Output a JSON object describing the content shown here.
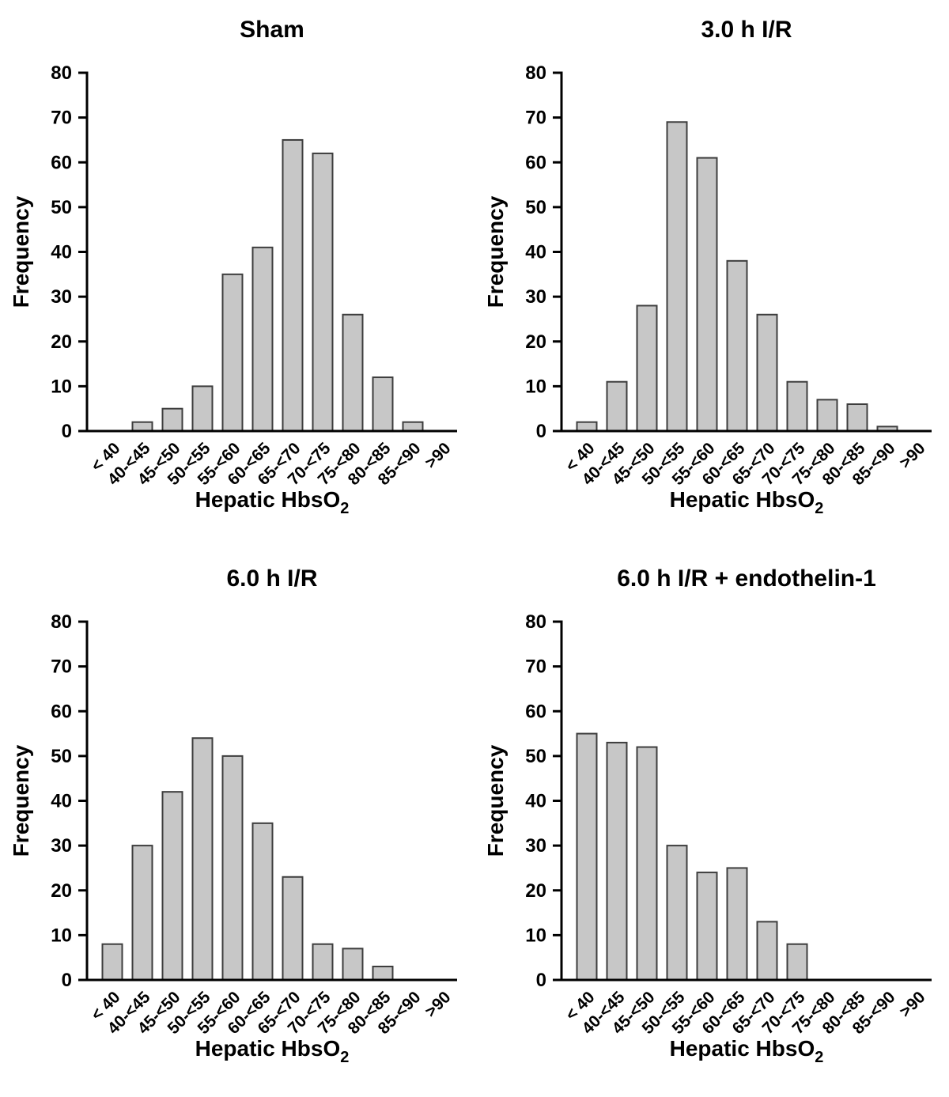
{
  "figure": {
    "description": "Four frequency histograms of hepatic HbsO2 saturation bins",
    "ylabel": "Frequency",
    "xlabel": "Hepatic HbsO",
    "xlabel_subscript": "2"
  },
  "colors": {
    "bar_fill": "#c7c7c7",
    "bar_stroke": "#3d3d3d",
    "axis": "#000000",
    "background": "#ffffff"
  },
  "chart_data": [
    {
      "type": "bar",
      "title": "Sham",
      "categories": [
        "< 40",
        "40-<45",
        "45-<50",
        "50-<55",
        "55-<60",
        "60-<65",
        "65-<70",
        "70-<75",
        "75-<80",
        "80-<85",
        "85-<90",
        ">90"
      ],
      "values": [
        0,
        2,
        5,
        10,
        35,
        41,
        65,
        62,
        26,
        12,
        2,
        0
      ],
      "xlabel": "Hepatic HbsO",
      "xlabel_sub": "2",
      "ylabel": "Frequency",
      "ylim": [
        0,
        80
      ],
      "yticks": [
        0,
        10,
        20,
        30,
        40,
        50,
        60,
        70,
        80
      ],
      "grid": false,
      "legend": "none"
    },
    {
      "type": "bar",
      "title": "3.0 h I/R",
      "categories": [
        "< 40",
        "40-<45",
        "45-<50",
        "50-<55",
        "55-<60",
        "60-<65",
        "65-<70",
        "70-<75",
        "75-<80",
        "80-<85",
        "85-<90",
        ">90"
      ],
      "values": [
        2,
        11,
        28,
        69,
        61,
        38,
        26,
        11,
        7,
        6,
        1,
        0
      ],
      "xlabel": "Hepatic HbsO",
      "xlabel_sub": "2",
      "ylabel": "Frequency",
      "ylim": [
        0,
        80
      ],
      "yticks": [
        0,
        10,
        20,
        30,
        40,
        50,
        60,
        70,
        80
      ],
      "grid": false,
      "legend": "none"
    },
    {
      "type": "bar",
      "title": "6.0 h I/R",
      "categories": [
        "< 40",
        "40-<45",
        "45-<50",
        "50-<55",
        "55-<60",
        "60-<65",
        "65-<70",
        "70-<75",
        "75-<80",
        "80-<85",
        "85-<90",
        ">90"
      ],
      "values": [
        8,
        30,
        42,
        54,
        50,
        35,
        23,
        8,
        7,
        3,
        0,
        0
      ],
      "xlabel": "Hepatic HbsO",
      "xlabel_sub": "2",
      "ylabel": "Frequency",
      "ylim": [
        0,
        80
      ],
      "yticks": [
        0,
        10,
        20,
        30,
        40,
        50,
        60,
        70,
        80
      ],
      "grid": false,
      "legend": "none"
    },
    {
      "type": "bar",
      "title": "6.0 h I/R + endothelin-1",
      "categories": [
        "< 40",
        "40-<45",
        "45-<50",
        "50-<55",
        "55-<60",
        "60-<65",
        "65-<70",
        "70-<75",
        "75-<80",
        "80-<85",
        "85-<90",
        ">90"
      ],
      "values": [
        55,
        53,
        52,
        30,
        24,
        25,
        13,
        8,
        0,
        0,
        0,
        0
      ],
      "xlabel": "Hepatic HbsO",
      "xlabel_sub": "2",
      "ylabel": "Frequency",
      "ylim": [
        0,
        80
      ],
      "yticks": [
        0,
        10,
        20,
        30,
        40,
        50,
        60,
        70,
        80
      ],
      "grid": false,
      "legend": "none"
    }
  ]
}
